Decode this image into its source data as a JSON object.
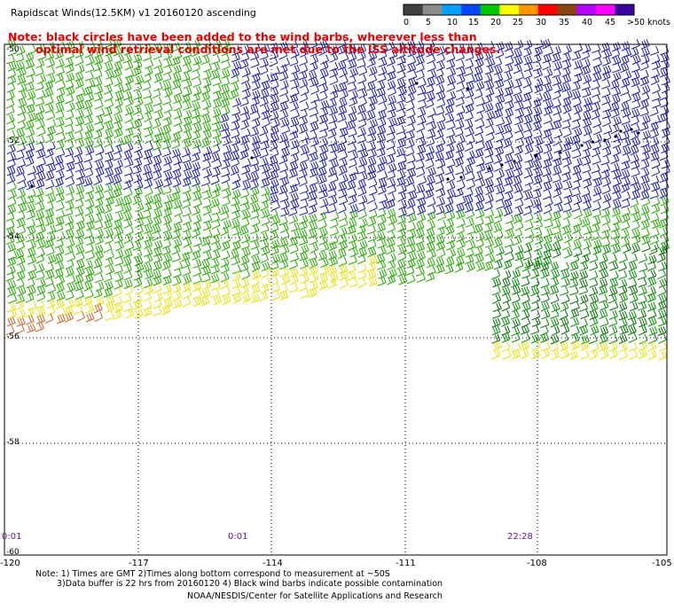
{
  "header": {
    "title": "Rapidscat Winds(12.5KM)  v1  20160120  ascending",
    "note_line1": "Note: black circles have been added to the wind barbs, wherever less than",
    "note_line2": "optimal wind retrieval conditions are met due to the ISS altitude changes."
  },
  "legend": {
    "units": "knots",
    "colors": [
      "#404040",
      "#8c8c8c",
      "#00a0ff",
      "#0046ff",
      "#00c800",
      "#ffff00",
      "#ff9600",
      "#ff0000",
      "#8b4513",
      "#b400ff",
      "#ff00ff",
      "#3c00a0"
    ],
    "labels": [
      "0",
      "5",
      "10",
      "15",
      "20",
      "25",
      "30",
      "35",
      "40",
      "45",
      ">50"
    ]
  },
  "axes": {
    "lat_labels": [
      "-50",
      "-52",
      "-54",
      "-56",
      "-58",
      "-60"
    ],
    "lon_labels": [
      "-120",
      "-117",
      "-114",
      "-111",
      "-108",
      "-105"
    ]
  },
  "time_labels": [
    "0:01",
    "0:01",
    "22:28"
  ],
  "footer": {
    "note1": "Note: 1) Times are GMT 2)Times along bottom correspond to measurement at ~50S",
    "note2": "3)Data buffer is 22 hrs from 20160120 4) Black wind barbs indicate possible contamination",
    "credit": "NOAA/NESDIS/Center for Satellite Applications and Research"
  }
}
